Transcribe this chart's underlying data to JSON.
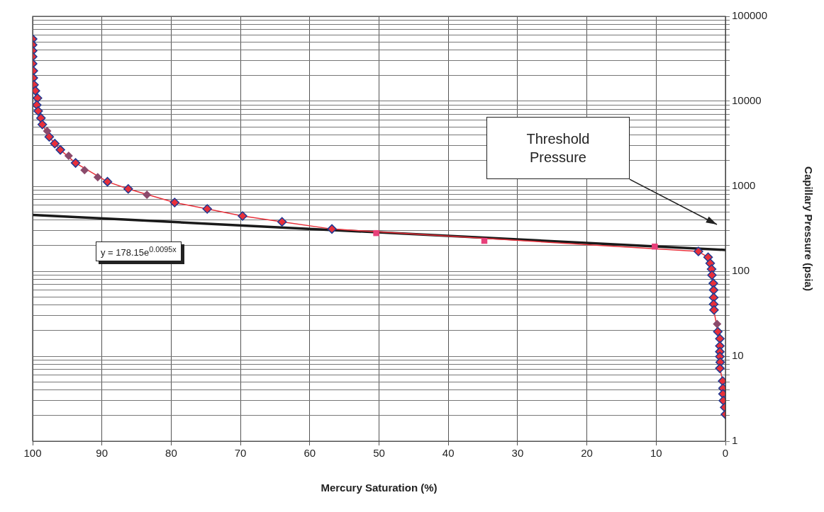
{
  "chart_data": {
    "type": "scatter",
    "xlabel": "Mercury Saturation (%)",
    "ylabel": "Capillary Pressure (psia)",
    "xlim": [
      100,
      0
    ],
    "xticks": [
      100,
      90,
      80,
      70,
      60,
      50,
      40,
      30,
      20,
      10,
      0
    ],
    "ylim": [
      1,
      100000
    ],
    "log": "y",
    "grid": true,
    "legend": false,
    "yticks": [
      1,
      {
        "value": 2,
        "label": null
      },
      {
        "value": 3,
        "label": null
      },
      {
        "value": 4,
        "label": null
      },
      {
        "value": 5,
        "label": null
      },
      {
        "value": 6,
        "label": null
      },
      {
        "value": 7,
        "label": null
      },
      {
        "value": 8,
        "label": null
      },
      {
        "value": 9,
        "label": null
      },
      10,
      {
        "value": 20,
        "label": null
      },
      {
        "value": 30,
        "label": null
      },
      {
        "value": 40,
        "label": null
      },
      {
        "value": 50,
        "label": null
      },
      {
        "value": 60,
        "label": null
      },
      {
        "value": 70,
        "label": null
      },
      {
        "value": 80,
        "label": null
      },
      {
        "value": 90,
        "label": null
      },
      100,
      {
        "value": 200,
        "label": null
      },
      {
        "value": 300,
        "label": null
      },
      {
        "value": 400,
        "label": null
      },
      {
        "value": 500,
        "label": null
      },
      {
        "value": 600,
        "label": null
      },
      {
        "value": 700,
        "label": null
      },
      {
        "value": 800,
        "label": null
      },
      {
        "value": 900,
        "label": null
      },
      1000,
      {
        "value": 2000,
        "label": null
      },
      {
        "value": 3000,
        "label": null
      },
      {
        "value": 4000,
        "label": null
      },
      {
        "value": 5000,
        "label": null
      },
      {
        "value": 6000,
        "label": null
      },
      {
        "value": 7000,
        "label": null
      },
      {
        "value": 8000,
        "label": null
      },
      {
        "value": 9000,
        "label": null
      },
      10000,
      {
        "value": 20000,
        "label": null
      },
      {
        "value": 30000,
        "label": null
      },
      {
        "value": 40000,
        "label": null
      },
      {
        "value": 50000,
        "label": null
      },
      {
        "value": 60000,
        "label": null
      },
      {
        "value": 70000,
        "label": null
      },
      {
        "value": 80000,
        "label": null
      },
      {
        "value": 90000,
        "label": null
      },
      100000
    ],
    "series": [
      {
        "type": "line",
        "marker": "diamond",
        "color": "#e8303a",
        "x": [
          100,
          100,
          100,
          100,
          100,
          99.9,
          99.9,
          99.8,
          99.6,
          99.3,
          99.4,
          99.2,
          98.8,
          98.6,
          97.6,
          96.8,
          96.0,
          93.8,
          89.2,
          86.2,
          79.5,
          74.8,
          69.7,
          64.0,
          56.8,
          3.9,
          2.5,
          2.2,
          2.0,
          1.95,
          1.75,
          1.7,
          1.7,
          1.7,
          1.65,
          1.1,
          0.8,
          0.8,
          0.8,
          0.8,
          0.75,
          0.8,
          0.4,
          0.35,
          0.35,
          0.3,
          0.1,
          0
        ],
        "values": [
          54000,
          46100,
          39300,
          33500,
          27700,
          22800,
          18800,
          15600,
          13300,
          10900,
          9040,
          7690,
          6350,
          5340,
          3810,
          3180,
          2680,
          1880,
          1130,
          931,
          643,
          541,
          447,
          381,
          314,
          171,
          146,
          124,
          106,
          90,
          72,
          60,
          49,
          41,
          35,
          19.5,
          16.1,
          13.2,
          11.3,
          9.9,
          8.5,
          7.2,
          5.1,
          4.2,
          3.6,
          3.0,
          2.5,
          2.07
        ]
      },
      {
        "marker": "diamond",
        "color": "#8b4a6b",
        "x": [
          97.9,
          94.8,
          92.5,
          90.6,
          83.5,
          1.2
        ],
        "values": [
          4470,
          2280,
          1550,
          1280,
          794,
          24
        ]
      },
      {
        "marker": "square",
        "color": "#e8407a",
        "x": [
          50.4,
          34.8,
          10.2
        ],
        "values": [
          281,
          228,
          195
        ]
      },
      {
        "type": "line",
        "marker": "none",
        "color": "#1a1a1a",
        "x": [
          100,
          0
        ],
        "values": [
          460,
          178.15
        ]
      }
    ],
    "annotations": [
      "y = 178.15e$^{0.0095x}$",
      "Threshold Pressure"
    ]
  }
}
